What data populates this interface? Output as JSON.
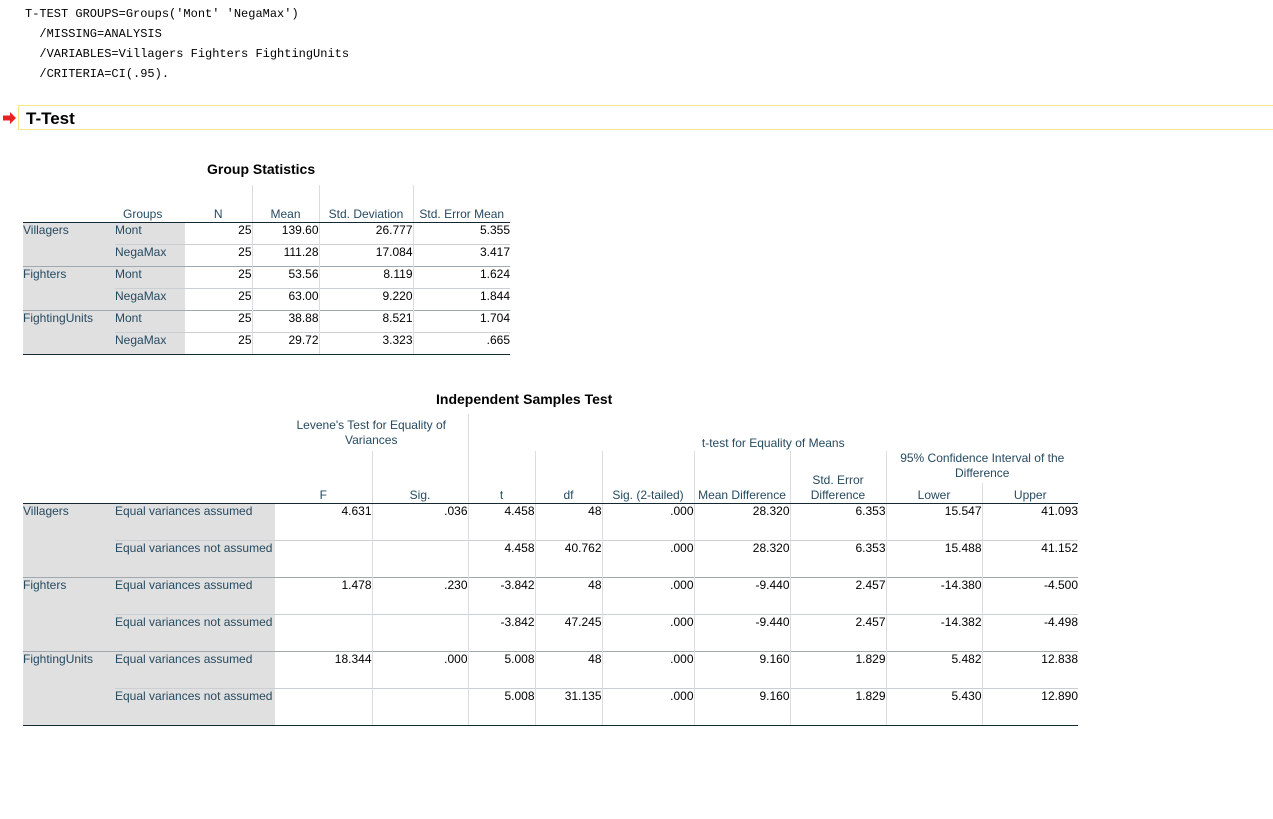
{
  "syntax": {
    "lines": [
      "T-TEST GROUPS=Groups('Mont' 'NegaMax')",
      "  /MISSING=ANALYSIS",
      "  /VARIABLES=Villagers Fighters FightingUnits",
      "  /CRITERIA=CI(.95)."
    ]
  },
  "heading": {
    "title": "T-Test",
    "arrow_color": "#e8231f"
  },
  "group_stats": {
    "title": "Group Statistics",
    "headers": {
      "groups": "Groups",
      "n": "N",
      "mean": "Mean",
      "std_dev": "Std. Deviation",
      "std_err": "Std. Error Mean"
    },
    "rows": [
      {
        "variable": "Villagers",
        "group": "Mont",
        "n": "25",
        "mean": "139.60",
        "std_dev": "26.777",
        "std_err": "5.355"
      },
      {
        "variable": "",
        "group": "NegaMax",
        "n": "25",
        "mean": "111.28",
        "std_dev": "17.084",
        "std_err": "3.417"
      },
      {
        "variable": "Fighters",
        "group": "Mont",
        "n": "25",
        "mean": "53.56",
        "std_dev": "8.119",
        "std_err": "1.624"
      },
      {
        "variable": "",
        "group": "NegaMax",
        "n": "25",
        "mean": "63.00",
        "std_dev": "9.220",
        "std_err": "1.844"
      },
      {
        "variable": "FightingUnits",
        "group": "Mont",
        "n": "25",
        "mean": "38.88",
        "std_dev": "8.521",
        "std_err": "1.704"
      },
      {
        "variable": "",
        "group": "NegaMax",
        "n": "25",
        "mean": "29.72",
        "std_dev": "3.323",
        "std_err": ".665"
      }
    ]
  },
  "ind_test": {
    "title": "Independent Samples Test",
    "headers": {
      "levene": "Levene's Test for Equality of Variances",
      "ttest": "t-test for Equality of Means",
      "ci": "95% Confidence Interval of the Difference",
      "f": "F",
      "sig": "Sig.",
      "t": "t",
      "df": "df",
      "sig2": "Sig. (2-tailed)",
      "mean_diff": "Mean Difference",
      "se_diff": "Std. Error Difference",
      "lower": "Lower",
      "upper": "Upper"
    },
    "rows": [
      {
        "variable": "Villagers",
        "assumption": "Equal variances assumed",
        "f": "4.631",
        "sig": ".036",
        "t": "4.458",
        "df": "48",
        "sig2": ".000",
        "mean_diff": "28.320",
        "se_diff": "6.353",
        "lower": "15.547",
        "upper": "41.093"
      },
      {
        "variable": "",
        "assumption": "Equal variances not assumed",
        "f": "",
        "sig": "",
        "t": "4.458",
        "df": "40.762",
        "sig2": ".000",
        "mean_diff": "28.320",
        "se_diff": "6.353",
        "lower": "15.488",
        "upper": "41.152"
      },
      {
        "variable": "Fighters",
        "assumption": "Equal variances assumed",
        "f": "1.478",
        "sig": ".230",
        "t": "-3.842",
        "df": "48",
        "sig2": ".000",
        "mean_diff": "-9.440",
        "se_diff": "2.457",
        "lower": "-14.380",
        "upper": "-4.500"
      },
      {
        "variable": "",
        "assumption": "Equal variances not assumed",
        "f": "",
        "sig": "",
        "t": "-3.842",
        "df": "47.245",
        "sig2": ".000",
        "mean_diff": "-9.440",
        "se_diff": "2.457",
        "lower": "-14.382",
        "upper": "-4.498"
      },
      {
        "variable": "FightingUnits",
        "assumption": "Equal variances assumed",
        "f": "18.344",
        "sig": ".000",
        "t": "5.008",
        "df": "48",
        "sig2": ".000",
        "mean_diff": "9.160",
        "se_diff": "1.829",
        "lower": "5.482",
        "upper": "12.838"
      },
      {
        "variable": "",
        "assumption": "Equal variances not assumed",
        "f": "",
        "sig": "",
        "t": "5.008",
        "df": "31.135",
        "sig2": ".000",
        "mean_diff": "9.160",
        "se_diff": "1.829",
        "lower": "5.430",
        "upper": "12.890"
      }
    ]
  }
}
